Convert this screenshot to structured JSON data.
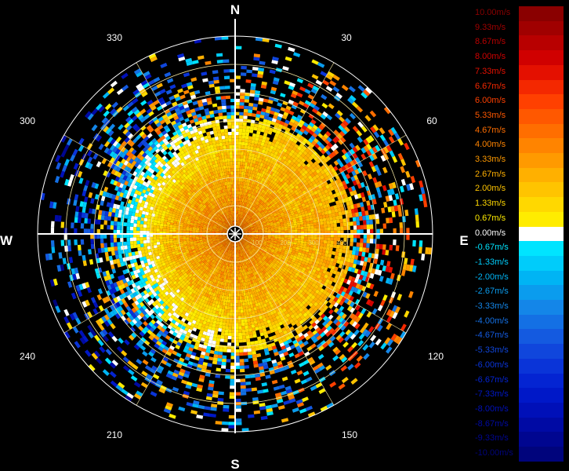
{
  "chart_data": {
    "type": "heatmap",
    "projection": "polar (plan position indicator)",
    "compass": {
      "north": "N",
      "south": "S",
      "east": "E",
      "west": "W"
    },
    "azimuth_labels": [
      "30",
      "60",
      "120",
      "150",
      "210",
      "240",
      "300",
      "330"
    ],
    "range_labels": [
      "100",
      "200",
      "300",
      "400"
    ],
    "color_scale": {
      "unit": "m/s",
      "min": -10.0,
      "max": 10.0,
      "steps": [
        {
          "label": "10.00m/s",
          "value": 10.0,
          "color": "#8a0000"
        },
        {
          "label": "9.33m/s",
          "value": 9.33,
          "color": "#a00000"
        },
        {
          "label": "8.67m/s",
          "value": 8.67,
          "color": "#b80000"
        },
        {
          "label": "8.00m/s",
          "value": 8.0,
          "color": "#d00000"
        },
        {
          "label": "7.33m/s",
          "value": 7.33,
          "color": "#e41000"
        },
        {
          "label": "6.67m/s",
          "value": 6.67,
          "color": "#f42800"
        },
        {
          "label": "6.00m/s",
          "value": 6.0,
          "color": "#ff4000"
        },
        {
          "label": "5.33m/s",
          "value": 5.33,
          "color": "#ff5800"
        },
        {
          "label": "4.67m/s",
          "value": 4.67,
          "color": "#ff6e00"
        },
        {
          "label": "4.00m/s",
          "value": 4.0,
          "color": "#ff8400"
        },
        {
          "label": "3.33m/s",
          "value": 3.33,
          "color": "#ff9a00"
        },
        {
          "label": "2.67m/s",
          "value": 2.67,
          "color": "#ffb000"
        },
        {
          "label": "2.00m/s",
          "value": 2.0,
          "color": "#ffc400"
        },
        {
          "label": "1.33m/s",
          "value": 1.33,
          "color": "#ffd800"
        },
        {
          "label": "0.67m/s",
          "value": 0.67,
          "color": "#ffec00"
        },
        {
          "label": "0.00m/s",
          "value": 0.0,
          "color": "#ffffff"
        },
        {
          "label": "-0.67m/s",
          "value": -0.67,
          "color": "#00e4ff"
        },
        {
          "label": "-1.33m/s",
          "value": -1.33,
          "color": "#00ccfa"
        },
        {
          "label": "-2.00m/s",
          "value": -2.0,
          "color": "#00b4f4"
        },
        {
          "label": "-2.67m/s",
          "value": -2.67,
          "color": "#0a9cee"
        },
        {
          "label": "-3.33m/s",
          "value": -3.33,
          "color": "#1486e8"
        },
        {
          "label": "-4.00m/s",
          "value": -4.0,
          "color": "#1470e4"
        },
        {
          "label": "-4.67m/s",
          "value": -4.67,
          "color": "#145ae0"
        },
        {
          "label": "-5.33m/s",
          "value": -5.33,
          "color": "#1046dc"
        },
        {
          "label": "-6.00m/s",
          "value": -6.0,
          "color": "#0a34d8"
        },
        {
          "label": "-6.67m/s",
          "value": -6.67,
          "color": "#0424d2"
        },
        {
          "label": "-7.33m/s",
          "value": -7.33,
          "color": "#0018c8"
        },
        {
          "label": "-8.00m/s",
          "value": -8.0,
          "color": "#0010b8"
        },
        {
          "label": "-8.67m/s",
          "value": -8.67,
          "color": "#000aa4"
        },
        {
          "label": "-9.33m/s",
          "value": -9.33,
          "color": "#000690"
        },
        {
          "label": "-10.00m/s",
          "value": -10.0,
          "color": "#00047c"
        }
      ]
    },
    "grid": true,
    "legend_position": "right",
    "field_description_values": {
      "inner_region_dominant": "positive (yellow/orange, ~1-5 m/s)",
      "outer_west_region_dominant": "negative (cyan/blue, ~-0.7 to -3 m/s)"
    }
  }
}
